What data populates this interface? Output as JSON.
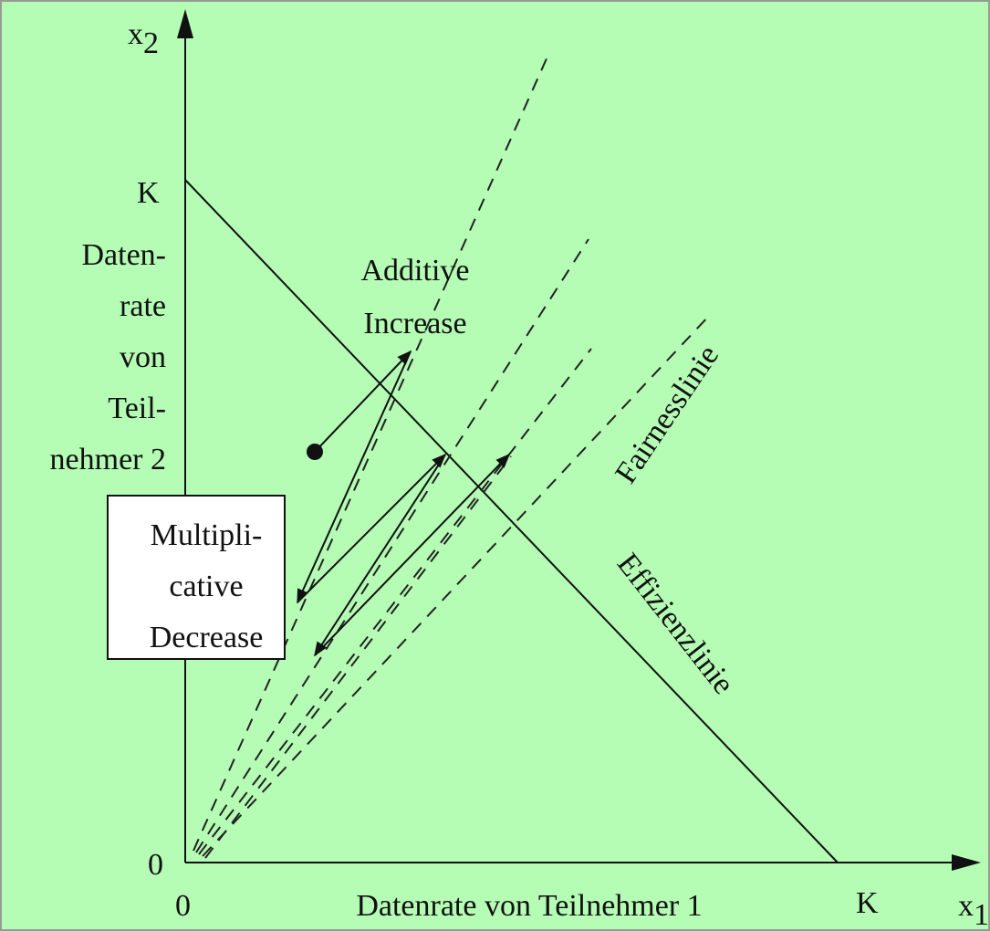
{
  "axes": {
    "y_symbol": "x",
    "y_subscript": "2",
    "x_symbol": "x",
    "x_subscript": "1",
    "y_max_label": "K",
    "x_max_label": "K",
    "y_origin_label": "0",
    "x_origin_label": "0",
    "y_title": [
      "Daten-",
      "rate",
      "von",
      "Teil-",
      "nehmer 2"
    ],
    "x_title": "Datenrate von Teilnehmer 1"
  },
  "annotations": {
    "additive": [
      "Additive",
      "Increase"
    ],
    "multiplicative": [
      "Multipli-",
      "cative",
      "Decrease"
    ],
    "fairness": "Fairnesslinie",
    "efficiency": "Effizienzlinie"
  }
}
